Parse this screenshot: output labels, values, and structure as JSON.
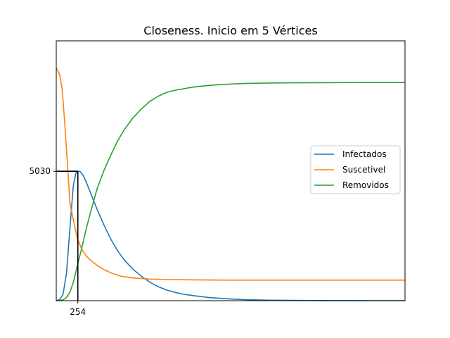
{
  "chart_data": {
    "type": "line",
    "title": "Closeness. Inicio em 5 Vértices",
    "xlabel": "",
    "ylabel": "",
    "xlim": [
      0,
      4100
    ],
    "ylim": [
      0,
      10100
    ],
    "xticks": [
      254
    ],
    "yticks": [
      5030
    ],
    "grid": false,
    "legend_position": "center-right",
    "peak_marker": {
      "x": 254,
      "y": 5030
    },
    "series": [
      {
        "name": "Infectados",
        "color": "#1f77b4",
        "x": [
          0,
          40,
          80,
          120,
          160,
          200,
          230,
          254,
          280,
          320,
          360,
          420,
          480,
          560,
          640,
          720,
          800,
          900,
          1000,
          1100,
          1200,
          1300,
          1400,
          1500,
          1600,
          1800,
          2000,
          2200,
          2500,
          2800,
          3100,
          3400,
          3700,
          4100
        ],
        "y": [
          0,
          40,
          250,
          1050,
          2800,
          4450,
          4950,
          5030,
          5020,
          4850,
          4550,
          4050,
          3550,
          2950,
          2400,
          1950,
          1580,
          1230,
          950,
          720,
          540,
          410,
          320,
          250,
          200,
          120,
          75,
          45,
          20,
          10,
          5,
          2,
          1,
          0
        ]
      },
      {
        "name": "Suscetivel",
        "color": "#ff7f0e",
        "x": [
          0,
          40,
          70,
          100,
          130,
          160,
          200,
          250,
          300,
          350,
          400,
          480,
          560,
          650,
          750,
          900,
          1100,
          1300,
          1600,
          2000,
          2500,
          3000,
          3500,
          4100
        ],
        "y": [
          9050,
          8800,
          8200,
          6900,
          5400,
          3800,
          3150,
          2400,
          2000,
          1750,
          1580,
          1370,
          1210,
          1070,
          960,
          880,
          840,
          820,
          810,
          800,
          800,
          800,
          800,
          800
        ]
      },
      {
        "name": "Removidos",
        "color": "#2ca02c",
        "x": [
          0,
          40,
          80,
          120,
          160,
          200,
          250,
          300,
          350,
          400,
          480,
          560,
          640,
          720,
          800,
          900,
          1000,
          1100,
          1200,
          1300,
          1400,
          1600,
          1800,
          2000,
          2200,
          2500,
          2800,
          3100,
          3400,
          3700,
          4100
        ],
        "y": [
          0,
          5,
          30,
          120,
          330,
          700,
          1380,
          2050,
          2750,
          3400,
          4350,
          5050,
          5650,
          6200,
          6650,
          7100,
          7450,
          7750,
          7950,
          8100,
          8180,
          8300,
          8370,
          8410,
          8440,
          8460,
          8470,
          8475,
          8478,
          8480,
          8480
        ]
      }
    ]
  }
}
